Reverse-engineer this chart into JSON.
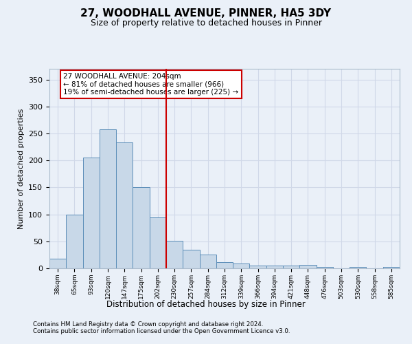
{
  "title": "27, WOODHALL AVENUE, PINNER, HA5 3DY",
  "subtitle": "Size of property relative to detached houses in Pinner",
  "xlabel": "Distribution of detached houses by size in Pinner",
  "ylabel": "Number of detached properties",
  "footer1": "Contains HM Land Registry data © Crown copyright and database right 2024.",
  "footer2": "Contains public sector information licensed under the Open Government Licence v3.0.",
  "annotation_line1": "27 WOODHALL AVENUE: 204sqm",
  "annotation_line2": "← 81% of detached houses are smaller (966)",
  "annotation_line3": "19% of semi-detached houses are larger (225) →",
  "bins": [
    "38sqm",
    "65sqm",
    "93sqm",
    "120sqm",
    "147sqm",
    "175sqm",
    "202sqm",
    "230sqm",
    "257sqm",
    "284sqm",
    "312sqm",
    "339sqm",
    "366sqm",
    "394sqm",
    "421sqm",
    "448sqm",
    "476sqm",
    "503sqm",
    "530sqm",
    "558sqm",
    "585sqm"
  ],
  "counts": [
    18,
    100,
    205,
    258,
    233,
    150,
    94,
    51,
    34,
    26,
    12,
    9,
    5,
    5,
    5,
    6,
    2,
    0,
    3,
    0,
    2
  ],
  "bar_color": "#c8d8e8",
  "bar_edge_color": "#5b8db8",
  "vline_color": "#cc0000",
  "vline_x": 6.5,
  "annotation_box_color": "#cc0000",
  "grid_color": "#d0d8e8",
  "background_color": "#eaf0f8",
  "ylim": [
    0,
    370
  ],
  "yticks": [
    0,
    50,
    100,
    150,
    200,
    250,
    300,
    350
  ]
}
